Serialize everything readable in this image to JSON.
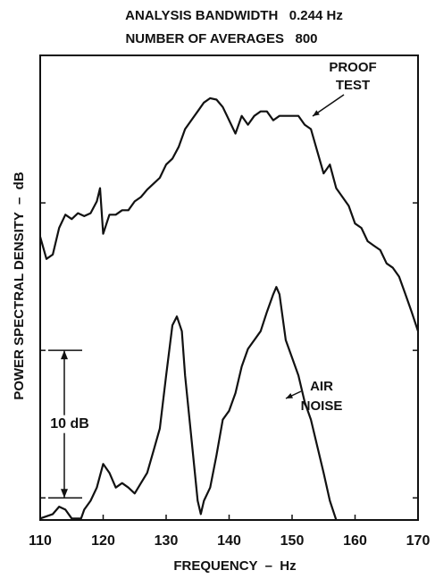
{
  "chart_data": {
    "type": "line",
    "title": "ANALYSIS BANDWIDTH   0.244 Hz",
    "subtitle": "NUMBER OF AVERAGES   800",
    "x_label": "FREQUENCY  –  Hz",
    "y_label": "POWER SPECTRAL DENSITY  –  dB",
    "xlim": [
      110,
      170
    ],
    "xticks": [
      110,
      120,
      130,
      140,
      150,
      160,
      170
    ],
    "ylim": [
      0,
      31.5
    ],
    "yticks": [
      1.5,
      11.5,
      21.5
    ],
    "scale_bar": {
      "label": "10 dB",
      "from": 1.5,
      "to": 11.5
    },
    "series": [
      {
        "name": "PROOF TEST",
        "color": "#111111",
        "x": [
          110,
          111,
          112,
          113,
          114,
          115,
          116,
          117,
          118,
          119,
          119.5,
          120,
          121,
          122,
          123,
          124,
          125,
          126,
          127,
          128,
          129,
          130,
          131,
          132,
          133,
          134,
          135,
          136,
          137,
          138,
          139,
          140,
          141,
          142,
          143,
          144,
          145,
          146,
          147,
          148,
          149,
          150,
          151,
          152,
          153,
          154,
          155,
          156,
          157,
          158,
          159,
          160,
          161,
          162,
          163,
          164,
          165,
          166,
          167,
          168,
          169,
          170
        ],
        "values": [
          19.2,
          17.7,
          18.0,
          19.8,
          20.7,
          20.4,
          20.8,
          20.6,
          20.8,
          21.6,
          22.5,
          19.4,
          20.7,
          20.7,
          21.0,
          21.0,
          21.6,
          21.9,
          22.4,
          22.8,
          23.2,
          24.1,
          24.5,
          25.3,
          26.5,
          27.1,
          27.7,
          28.3,
          28.6,
          28.5,
          28.0,
          27.1,
          26.2,
          27.4,
          26.8,
          27.4,
          27.7,
          27.7,
          27.1,
          27.4,
          27.4,
          27.4,
          27.4,
          26.8,
          26.5,
          25.0,
          23.5,
          24.1,
          22.5,
          21.9,
          21.3,
          20.1,
          19.8,
          18.9,
          18.6,
          18.3,
          17.4,
          17.1,
          16.5,
          15.3,
          14.1,
          12.8
        ]
      },
      {
        "name": "AIR NOISE",
        "color": "#111111",
        "x": [
          110,
          112,
          113,
          114,
          115,
          116.5,
          117,
          118,
          119,
          120,
          121,
          122,
          123,
          124,
          125,
          126,
          127,
          128,
          129,
          130,
          131,
          131.7,
          132.5,
          133,
          134,
          135,
          135.5,
          136,
          137,
          138,
          139,
          140,
          141,
          142,
          143,
          144,
          145,
          146,
          147,
          147.5,
          148,
          149,
          150,
          151,
          152,
          153,
          154,
          155,
          156,
          157
        ],
        "values": [
          0.1,
          0.4,
          0.9,
          0.7,
          0.1,
          0.1,
          0.7,
          1.3,
          2.2,
          3.8,
          3.2,
          2.2,
          2.5,
          2.2,
          1.8,
          2.5,
          3.2,
          4.7,
          6.2,
          9.8,
          13.2,
          13.8,
          12.8,
          9.8,
          5.6,
          1.3,
          0.4,
          1.3,
          2.2,
          4.4,
          6.8,
          7.4,
          8.6,
          10.4,
          11.6,
          12.2,
          12.8,
          14.1,
          15.3,
          15.8,
          15.3,
          12.2,
          11.0,
          9.8,
          8.0,
          6.8,
          5.0,
          3.2,
          1.3,
          0
        ]
      }
    ]
  }
}
